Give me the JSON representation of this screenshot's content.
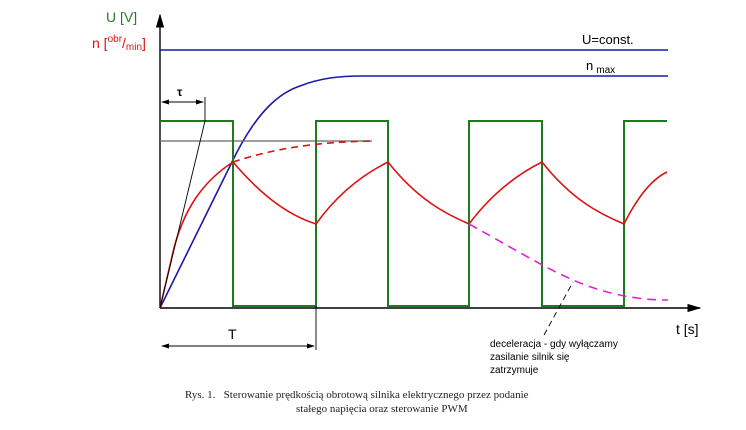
{
  "axes": {
    "y_unit_voltage": "U [V]",
    "y_unit_speed_prefix": "n [",
    "y_unit_speed_sup": "obr",
    "y_unit_speed_slash": "/",
    "y_unit_speed_sub": "min",
    "y_unit_speed_suffix": "]",
    "x_unit_time": "t [s]"
  },
  "labels": {
    "const_voltage": "U=const.",
    "n_max_main": "n",
    "n_max_sub": "max",
    "tau": "τ",
    "period": "T"
  },
  "annotation": {
    "line1": "deceleracja - gdy wyłączamy",
    "line2": "zasilanie silnik się",
    "line3": "zatrzymuje"
  },
  "caption": {
    "line1": "Rys. 1.   Sterowanie prędkością obrotową silnika elektrycznego przez podanie",
    "line2": "stałego napięcia oraz sterowanie PWM"
  },
  "colors": {
    "voltage_const": "#1a1aa8",
    "speed_const": "#1a1aa8",
    "pwm": "#1f7a1f",
    "speed_pwm": "#dd1111",
    "deceleration": "#dd22dd",
    "axis": "#000000",
    "label_voltage": "#2a7a2a",
    "label_speed": "#dd1111"
  }
}
